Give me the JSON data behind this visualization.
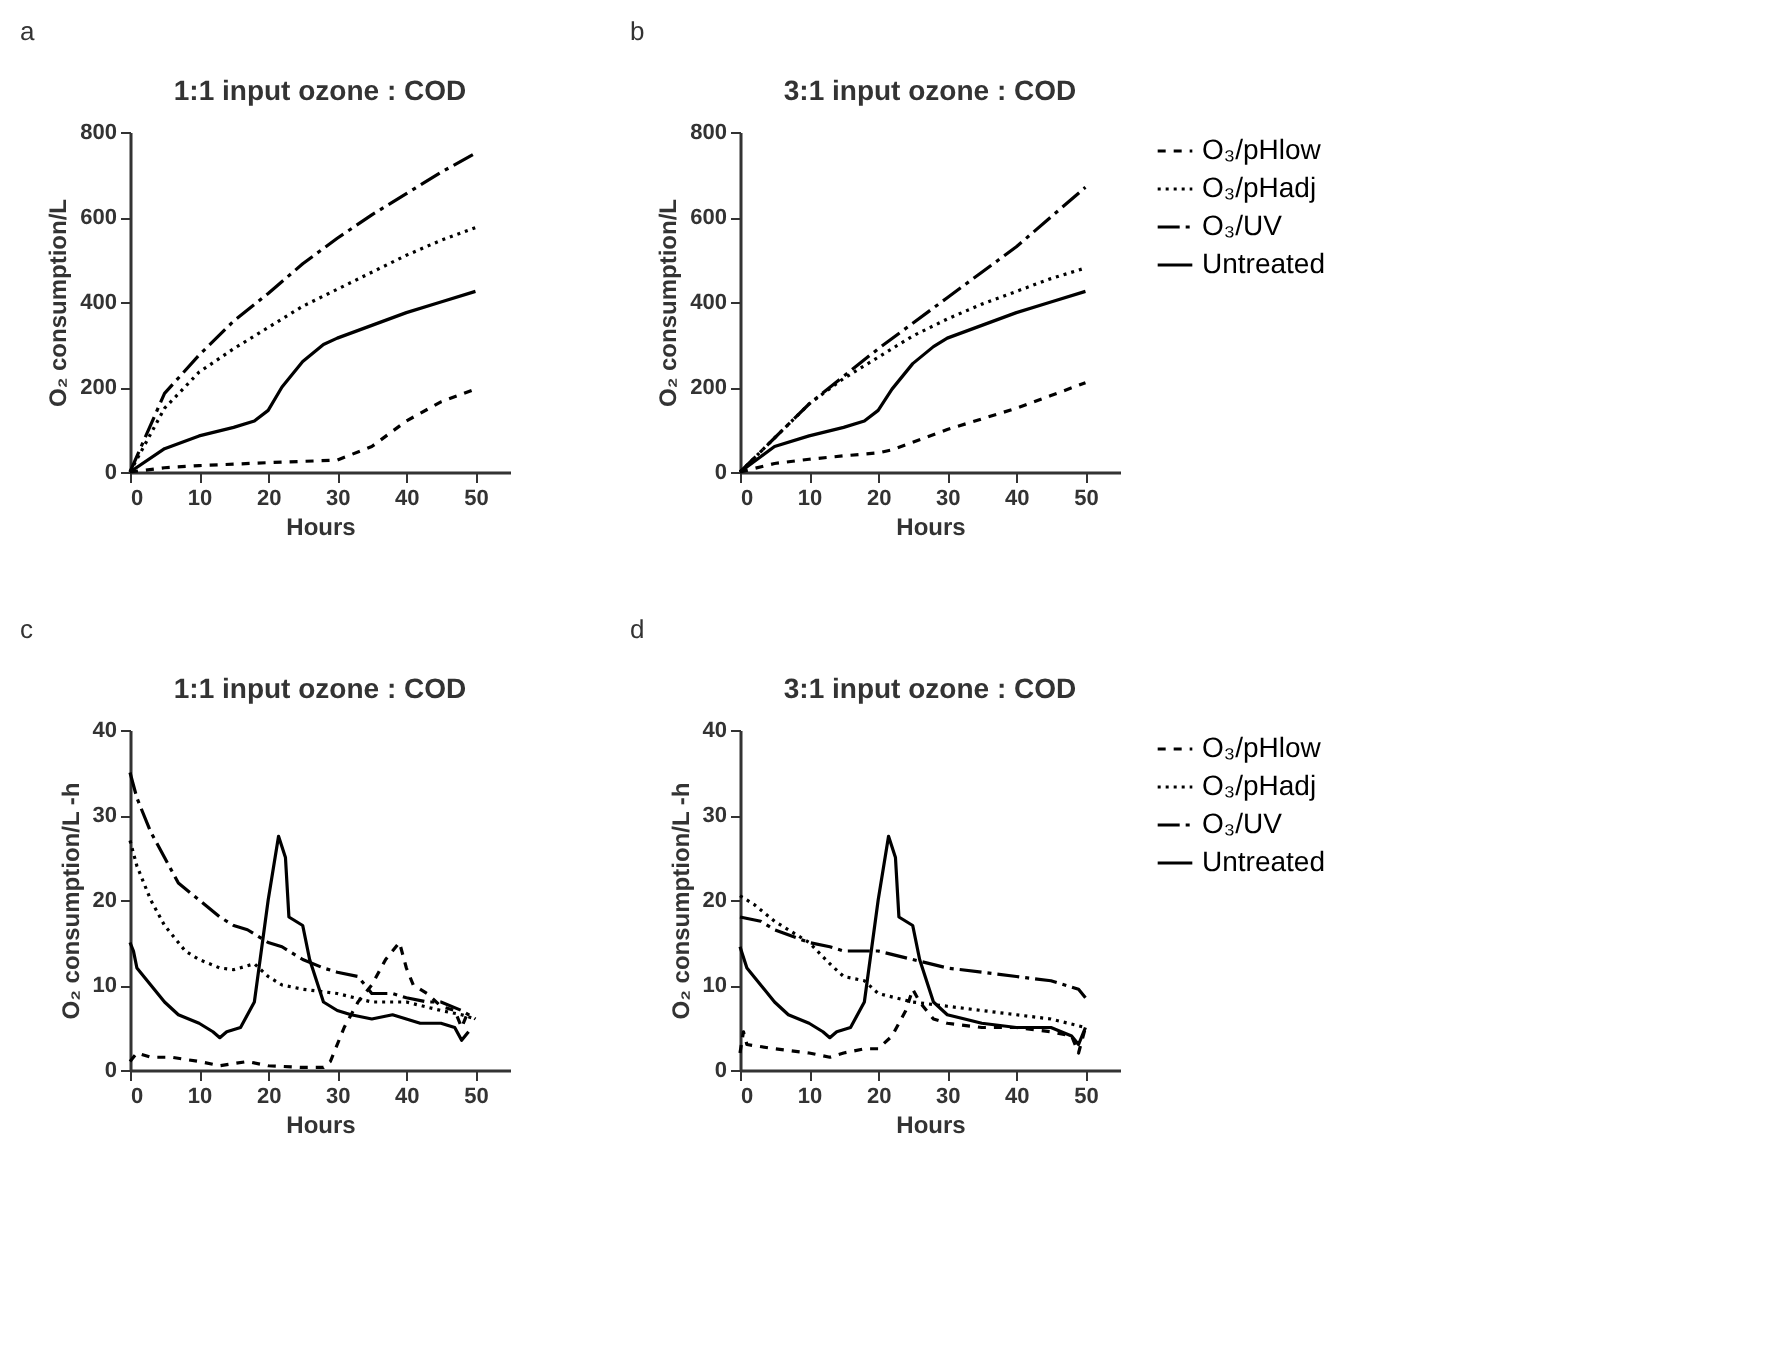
{
  "chart_data": [
    {
      "type": "line",
      "title": "1:1 input ozone : COD",
      "xlabel": "Hours",
      "ylabel": "O₂ consumption/L",
      "annotations": [
        "a"
      ],
      "xlim": [
        0,
        55
      ],
      "xticks": [
        0,
        10,
        20,
        30,
        40,
        50
      ],
      "ylim": [
        0,
        800
      ],
      "yticks": [
        0,
        200,
        400,
        600,
        800
      ],
      "grid": false,
      "legend": false,
      "series": [
        {
          "color": "#000000",
          "line_style": "dashed",
          "x": [
            0,
            5,
            10,
            20,
            30,
            35,
            40,
            45,
            50
          ],
          "values": [
            0,
            10,
            15,
            22,
            28,
            60,
            120,
            165,
            195
          ]
        },
        {
          "color": "#000000",
          "line_style": "dotted",
          "x": [
            0,
            5,
            10,
            15,
            20,
            25,
            30,
            35,
            40,
            45,
            50
          ],
          "values": [
            0,
            150,
            235,
            290,
            340,
            390,
            430,
            470,
            510,
            545,
            575
          ]
        },
        {
          "color": "#000000",
          "line_style": "dashdot",
          "x": [
            0,
            5,
            10,
            15,
            20,
            25,
            30,
            35,
            40,
            45,
            50
          ],
          "values": [
            0,
            185,
            275,
            355,
            420,
            490,
            550,
            605,
            655,
            705,
            750
          ]
        },
        {
          "color": "#000000",
          "line_style": "solid",
          "x": [
            0,
            5,
            10,
            15,
            18,
            20,
            22,
            25,
            28,
            30,
            35,
            40,
            45,
            50
          ],
          "values": [
            0,
            55,
            85,
            105,
            120,
            145,
            200,
            260,
            300,
            315,
            345,
            375,
            400,
            425
          ]
        }
      ]
    },
    {
      "type": "line",
      "title": "3:1 input ozone : COD",
      "xlabel": "Hours",
      "ylabel": "O₂ consumption/L",
      "annotations": [
        "b"
      ],
      "xlim": [
        0,
        55
      ],
      "xticks": [
        0,
        10,
        20,
        30,
        40,
        50
      ],
      "ylim": [
        0,
        800
      ],
      "yticks": [
        0,
        200,
        400,
        600,
        800
      ],
      "grid": false,
      "legend": "right",
      "series": [
        {
          "name": "O₃/pHlow",
          "color": "#000000",
          "line_style": "dashed",
          "x": [
            0,
            5,
            10,
            15,
            20,
            22,
            25,
            30,
            35,
            40,
            45,
            50
          ],
          "values": [
            0,
            20,
            30,
            38,
            45,
            52,
            70,
            100,
            125,
            150,
            180,
            210
          ]
        },
        {
          "name": "O₃/pHadj",
          "color": "#000000",
          "line_style": "dotted",
          "x": [
            0,
            5,
            10,
            15,
            20,
            25,
            30,
            35,
            40,
            45,
            50
          ],
          "values": [
            0,
            80,
            160,
            220,
            270,
            320,
            360,
            395,
            425,
            455,
            480
          ]
        },
        {
          "name": "O₃/UV",
          "color": "#000000",
          "line_style": "dashdot",
          "x": [
            0,
            5,
            10,
            15,
            20,
            25,
            30,
            35,
            40,
            45,
            50
          ],
          "values": [
            0,
            80,
            160,
            225,
            290,
            350,
            410,
            470,
            530,
            600,
            670
          ]
        },
        {
          "name": "Untreated",
          "color": "#000000",
          "line_style": "solid",
          "x": [
            0,
            5,
            10,
            15,
            18,
            20,
            22,
            25,
            28,
            30,
            35,
            40,
            45,
            50
          ],
          "values": [
            0,
            60,
            85,
            105,
            120,
            145,
            195,
            255,
            295,
            315,
            345,
            375,
            400,
            425
          ]
        }
      ]
    },
    {
      "type": "line",
      "title": "1:1 input ozone : COD",
      "xlabel": "Hours",
      "ylabel": "O₂ consumption/L -h",
      "annotations": [
        "c"
      ],
      "xlim": [
        0,
        55
      ],
      "xticks": [
        0,
        10,
        20,
        30,
        40,
        50
      ],
      "ylim": [
        0,
        40
      ],
      "yticks": [
        0,
        10,
        20,
        30,
        40
      ],
      "grid": false,
      "legend": false,
      "series": [
        {
          "color": "#000000",
          "line_style": "dashed",
          "x": [
            0,
            1,
            3,
            6,
            10,
            13,
            17,
            20,
            25,
            28,
            29,
            31,
            33,
            35,
            37,
            39,
            40,
            41,
            43,
            45,
            47,
            48,
            49
          ],
          "values": [
            1,
            2,
            1.5,
            1.5,
            1,
            0.5,
            1,
            0.5,
            0.3,
            0.3,
            1,
            5,
            8,
            10,
            13,
            15,
            12,
            10,
            9,
            7.5,
            7,
            5,
            7
          ]
        },
        {
          "color": "#000000",
          "line_style": "dotted",
          "x": [
            0,
            1,
            3,
            5,
            8,
            10,
            13,
            15,
            18,
            20,
            22,
            25,
            30,
            35,
            40,
            45,
            48,
            50
          ],
          "values": [
            27,
            24,
            20,
            17,
            14,
            13,
            12,
            11.8,
            12.5,
            11,
            10,
            9.5,
            9,
            8,
            8,
            7,
            6.5,
            6
          ]
        },
        {
          "color": "#000000",
          "line_style": "dashdot",
          "x": [
            0,
            1,
            3,
            5,
            7,
            10,
            13,
            15,
            17,
            20,
            22,
            25,
            28,
            30,
            33,
            35,
            38,
            40,
            43,
            45,
            48,
            50
          ],
          "values": [
            35,
            32,
            28,
            25,
            22,
            20,
            18,
            17,
            16.5,
            15,
            14.5,
            13,
            12,
            11.5,
            11,
            9,
            9,
            8.5,
            8,
            8,
            7,
            6
          ]
        },
        {
          "color": "#000000",
          "line_style": "solid",
          "x": [
            0,
            0.5,
            1,
            3,
            5,
            7,
            10,
            12,
            13,
            14,
            16,
            18,
            20,
            21.5,
            22.5,
            23,
            24,
            25,
            26,
            28,
            30,
            32,
            35,
            38,
            40,
            42,
            45,
            47,
            48,
            49
          ],
          "values": [
            15,
            14,
            12,
            10,
            8,
            6.5,
            5.5,
            4.5,
            3.8,
            4.5,
            5,
            8,
            20,
            27.5,
            25,
            18,
            17.5,
            17,
            13,
            8,
            7,
            6.5,
            6,
            6.5,
            6,
            5.5,
            5.5,
            5,
            3.5,
            4.5
          ]
        }
      ]
    },
    {
      "type": "line",
      "title": "3:1 input ozone : COD",
      "xlabel": "Hours",
      "ylabel": "O₂ consumption/L -h",
      "annotations": [
        "d"
      ],
      "xlim": [
        0,
        55
      ],
      "xticks": [
        0,
        10,
        20,
        30,
        40,
        50
      ],
      "ylim": [
        0,
        40
      ],
      "yticks": [
        0,
        10,
        20,
        30,
        40
      ],
      "grid": false,
      "legend": "right",
      "series": [
        {
          "name": "O₃/pHlow",
          "color": "#000000",
          "line_style": "dashed",
          "x": [
            0,
            0.5,
            1,
            5,
            10,
            13,
            15,
            18,
            20,
            22,
            24,
            25,
            26,
            28,
            30,
            35,
            40,
            45,
            48,
            49,
            50
          ],
          "values": [
            2,
            4.5,
            3,
            2.5,
            2,
            1.5,
            2,
            2.5,
            2.5,
            4,
            7,
            9.5,
            8,
            6,
            5.5,
            5,
            5,
            4.5,
            4,
            2,
            5
          ]
        },
        {
          "name": "O₃/pHadj",
          "color": "#000000",
          "line_style": "dotted",
          "x": [
            0,
            2,
            5,
            10,
            13,
            15,
            18,
            20,
            25,
            30,
            35,
            40,
            45,
            50
          ],
          "values": [
            20.5,
            19.5,
            17.5,
            15,
            12.5,
            11,
            10.5,
            9,
            8,
            7.5,
            7,
            6.5,
            6,
            5
          ]
        },
        {
          "name": "O₃/UV",
          "color": "#000000",
          "line_style": "dashdot",
          "x": [
            0,
            3,
            5,
            10,
            13,
            15,
            18,
            20,
            25,
            30,
            35,
            40,
            45,
            49,
            50
          ],
          "values": [
            18,
            17.5,
            16.5,
            15,
            14.5,
            14,
            14,
            14,
            13,
            12,
            11.5,
            11,
            10.5,
            9.5,
            8.5
          ]
        },
        {
          "name": "Untreated",
          "color": "#000000",
          "line_style": "solid",
          "x": [
            0,
            1,
            3,
            5,
            7,
            10,
            12,
            13,
            14,
            16,
            18,
            20,
            21.5,
            22.5,
            23,
            24,
            25,
            26,
            28,
            30,
            35,
            40,
            45,
            48,
            49,
            50
          ],
          "values": [
            14.5,
            12,
            10,
            8,
            6.5,
            5.5,
            4.5,
            3.8,
            4.5,
            5,
            8,
            20,
            27.5,
            25,
            18,
            17.5,
            17,
            13,
            8,
            6.5,
            5.5,
            5,
            5,
            4,
            3,
            5
          ]
        }
      ]
    }
  ]
}
